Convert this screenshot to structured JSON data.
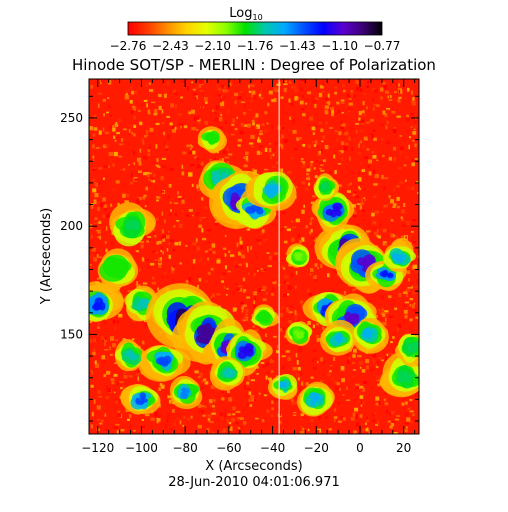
{
  "chart_data": {
    "type": "heatmap",
    "title": "Hinode SOT/SP - MERLIN : Degree of Polarization",
    "colorbar": {
      "label": "Log",
      "label_subscript": "10",
      "tick_labels": [
        "−2.76",
        "−2.43",
        "−2.10",
        "−1.76",
        "−1.43",
        "−1.10",
        "−0.77"
      ],
      "colormap": [
        "#ff0000",
        "#ff3a00",
        "#ff8c00",
        "#ffd200",
        "#e6ff00",
        "#8cff00",
        "#00e100",
        "#00c8aa",
        "#00aaff",
        "#0050ff",
        "#0000ff",
        "#5a00d2",
        "#3c0078",
        "#000000"
      ]
    },
    "xlabel": "X (Arcseconds)",
    "ylabel": "Y (Arcseconds)",
    "xlim": [
      -124,
      27
    ],
    "ylim": [
      104,
      268
    ],
    "xticks": [
      -120,
      -100,
      -80,
      -60,
      -40,
      -20,
      0,
      20
    ],
    "yticks": [
      150,
      200,
      250
    ],
    "xtick_labels": [
      "−120",
      "−100",
      "−80",
      "−60",
      "−40",
      "−20",
      "0",
      "20"
    ],
    "ytick_labels": [
      "150",
      "200",
      "250"
    ],
    "timestamp": "28-Jun-2010 04:01:06.971",
    "seam_x": -37,
    "background_color": "#ff1a00",
    "hotspots": [
      {
        "x": -68,
        "y": 240,
        "r": 3,
        "level": 0.45
      },
      {
        "x": -64,
        "y": 222,
        "r": 5,
        "level": 0.55
      },
      {
        "x": -55,
        "y": 212,
        "r": 7,
        "level": 0.85
      },
      {
        "x": -48,
        "y": 208,
        "r": 5,
        "level": 0.7
      },
      {
        "x": -40,
        "y": 216,
        "r": 5,
        "level": 0.6
      },
      {
        "x": -104,
        "y": 200,
        "r": 5,
        "level": 0.5
      },
      {
        "x": -112,
        "y": 180,
        "r": 5,
        "level": 0.45
      },
      {
        "x": -120,
        "y": 164,
        "r": 5,
        "level": 0.75
      },
      {
        "x": -100,
        "y": 164,
        "r": 4,
        "level": 0.55
      },
      {
        "x": -80,
        "y": 157,
        "r": 8,
        "level": 0.95
      },
      {
        "x": -70,
        "y": 151,
        "r": 7,
        "level": 0.9
      },
      {
        "x": -60,
        "y": 144,
        "r": 6,
        "level": 0.85
      },
      {
        "x": -52,
        "y": 142,
        "r": 5,
        "level": 0.8
      },
      {
        "x": -90,
        "y": 138,
        "r": 5,
        "level": 0.7
      },
      {
        "x": -105,
        "y": 140,
        "r": 4,
        "level": 0.55
      },
      {
        "x": -100,
        "y": 120,
        "r": 4,
        "level": 0.7
      },
      {
        "x": -80,
        "y": 123,
        "r": 4,
        "level": 0.65
      },
      {
        "x": -60,
        "y": 132,
        "r": 4,
        "level": 0.55
      },
      {
        "x": -44,
        "y": 158,
        "r": 3,
        "level": 0.45
      },
      {
        "x": -28,
        "y": 150,
        "r": 3,
        "level": 0.4
      },
      {
        "x": -14,
        "y": 162,
        "r": 5,
        "level": 0.75
      },
      {
        "x": -4,
        "y": 158,
        "r": 6,
        "level": 0.85
      },
      {
        "x": -10,
        "y": 148,
        "r": 4,
        "level": 0.6
      },
      {
        "x": 4,
        "y": 150,
        "r": 4,
        "level": 0.6
      },
      {
        "x": -6,
        "y": 190,
        "r": 6,
        "level": 0.9
      },
      {
        "x": 2,
        "y": 182,
        "r": 6,
        "level": 0.85
      },
      {
        "x": 12,
        "y": 178,
        "r": 4,
        "level": 0.75
      },
      {
        "x": 18,
        "y": 186,
        "r": 4,
        "level": 0.6
      },
      {
        "x": -12,
        "y": 208,
        "r": 5,
        "level": 0.8
      },
      {
        "x": -16,
        "y": 218,
        "r": 3,
        "level": 0.5
      },
      {
        "x": -20,
        "y": 120,
        "r": 4,
        "level": 0.6
      },
      {
        "x": -35,
        "y": 126,
        "r": 3,
        "level": 0.6
      },
      {
        "x": 20,
        "y": 130,
        "r": 5,
        "level": 0.5
      },
      {
        "x": 24,
        "y": 144,
        "r": 4,
        "level": 0.5
      },
      {
        "x": -28,
        "y": 186,
        "r": 3,
        "level": 0.4
      }
    ]
  }
}
